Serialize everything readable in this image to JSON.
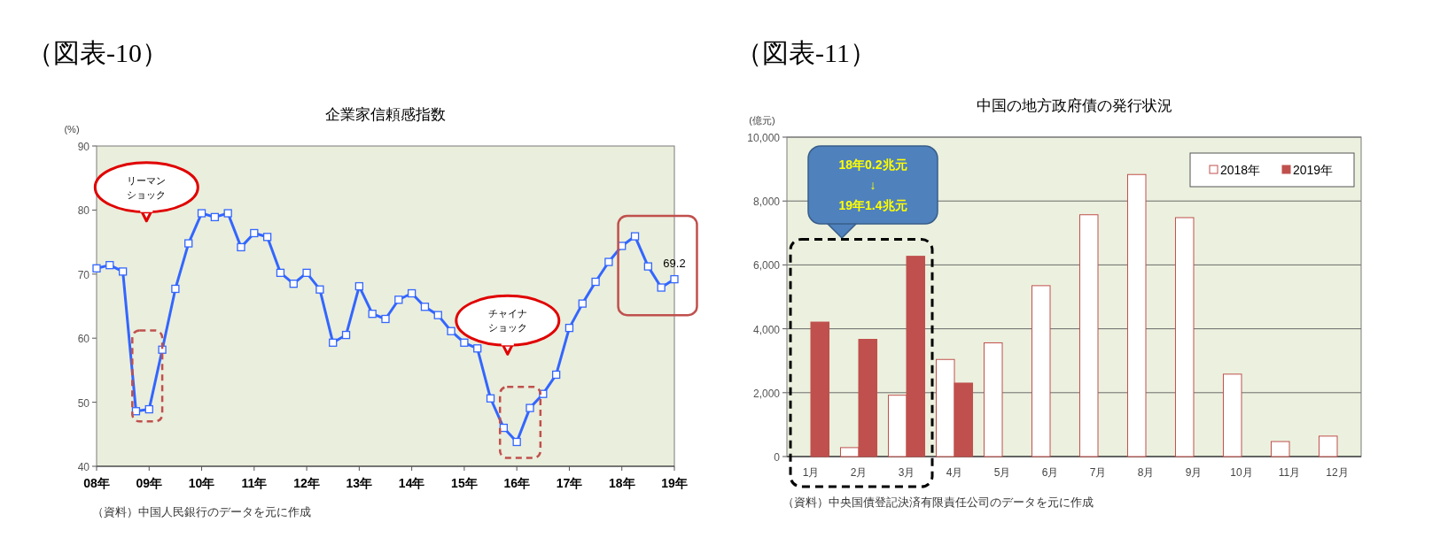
{
  "chart_data": [
    {
      "type": "line",
      "title": "企業家信頼感指数",
      "ylabel": "(%)",
      "categories": [
        "08年",
        null,
        null,
        null,
        "09年",
        null,
        null,
        null,
        "10年",
        null,
        null,
        null,
        "11年",
        null,
        null,
        null,
        "12年",
        null,
        null,
        null,
        "13年",
        null,
        null,
        null,
        "14年",
        null,
        null,
        null,
        "15年",
        null,
        null,
        null,
        "16年",
        null,
        null,
        null,
        "17年",
        null,
        null,
        null,
        "18年",
        null,
        null,
        null,
        "19年"
      ],
      "series": [
        {
          "color": "#3366ff",
          "values": [
            70.9,
            71.4,
            70.4,
            48.6,
            48.9,
            58.2,
            67.7,
            74.8,
            79.5,
            78.9,
            79.5,
            74.2,
            76.4,
            75.8,
            70.2,
            68.5,
            70.2,
            67.6,
            59.3,
            60.5,
            68.1,
            63.8,
            63.0,
            66.0,
            67.0,
            64.9,
            63.6,
            61.1,
            59.3,
            58.4,
            50.6,
            46.0,
            43.8,
            49.1,
            51.3,
            54.3,
            61.6,
            65.4,
            68.8,
            71.9,
            74.4,
            75.9,
            71.2,
            67.9,
            69.2
          ],
          "value_labels": [
            null,
            null,
            null,
            null,
            null,
            null,
            null,
            null,
            null,
            null,
            null,
            null,
            null,
            null,
            null,
            null,
            null,
            null,
            null,
            null,
            null,
            null,
            null,
            null,
            null,
            null,
            null,
            null,
            null,
            null,
            null,
            null,
            null,
            null,
            null,
            null,
            null,
            null,
            null,
            null,
            null,
            null,
            null,
            null,
            "69.2"
          ]
        }
      ],
      "ylim": [
        40,
        90
      ],
      "yticks": [
        40,
        50,
        60,
        70,
        80,
        90
      ],
      "marker": "square",
      "legend": false,
      "grid": false,
      "annotations": [
        "（図表-10）",
        "リーマンショック",
        "チャイナショック",
        "（資料）中国人民銀行のデータを元に作成"
      ]
    },
    {
      "type": "bar",
      "title": "中国の地方政府債の発行状況",
      "ylabel": "(億元)",
      "categories": [
        "1月",
        "2月",
        "3月",
        "4月",
        "5月",
        "6月",
        "7月",
        "8月",
        "9月",
        "10月",
        "11月",
        "12月"
      ],
      "series": [
        {
          "name": "2018年",
          "color": "#ffffff",
          "values": [
            0,
            280,
            1920,
            3040,
            3560,
            5350,
            7570,
            8830,
            7480,
            2580,
            470,
            640
          ]
        },
        {
          "name": "2019年",
          "color": "#c0504d",
          "values": [
            4210,
            3670,
            6270,
            2300,
            null,
            null,
            null,
            null,
            null,
            null,
            null,
            null
          ]
        }
      ],
      "ylim": [
        0,
        10000
      ],
      "yticks": [
        0,
        {
          "value": 2000,
          "label": "2,000"
        },
        {
          "value": 4000,
          "label": "4,000"
        },
        {
          "value": 6000,
          "label": "6,000"
        },
        {
          "value": 8000,
          "label": "8,000"
        },
        {
          "value": 10000,
          "label": "10,000"
        }
      ],
      "grid": "y",
      "legend": "top right",
      "annotations": [
        "（図表-11）",
        "18年0.2兆元\n↓\n19年1.4兆元",
        "（資料）中央国債登記決済有限責任公司のデータを元に作成"
      ]
    }
  ]
}
